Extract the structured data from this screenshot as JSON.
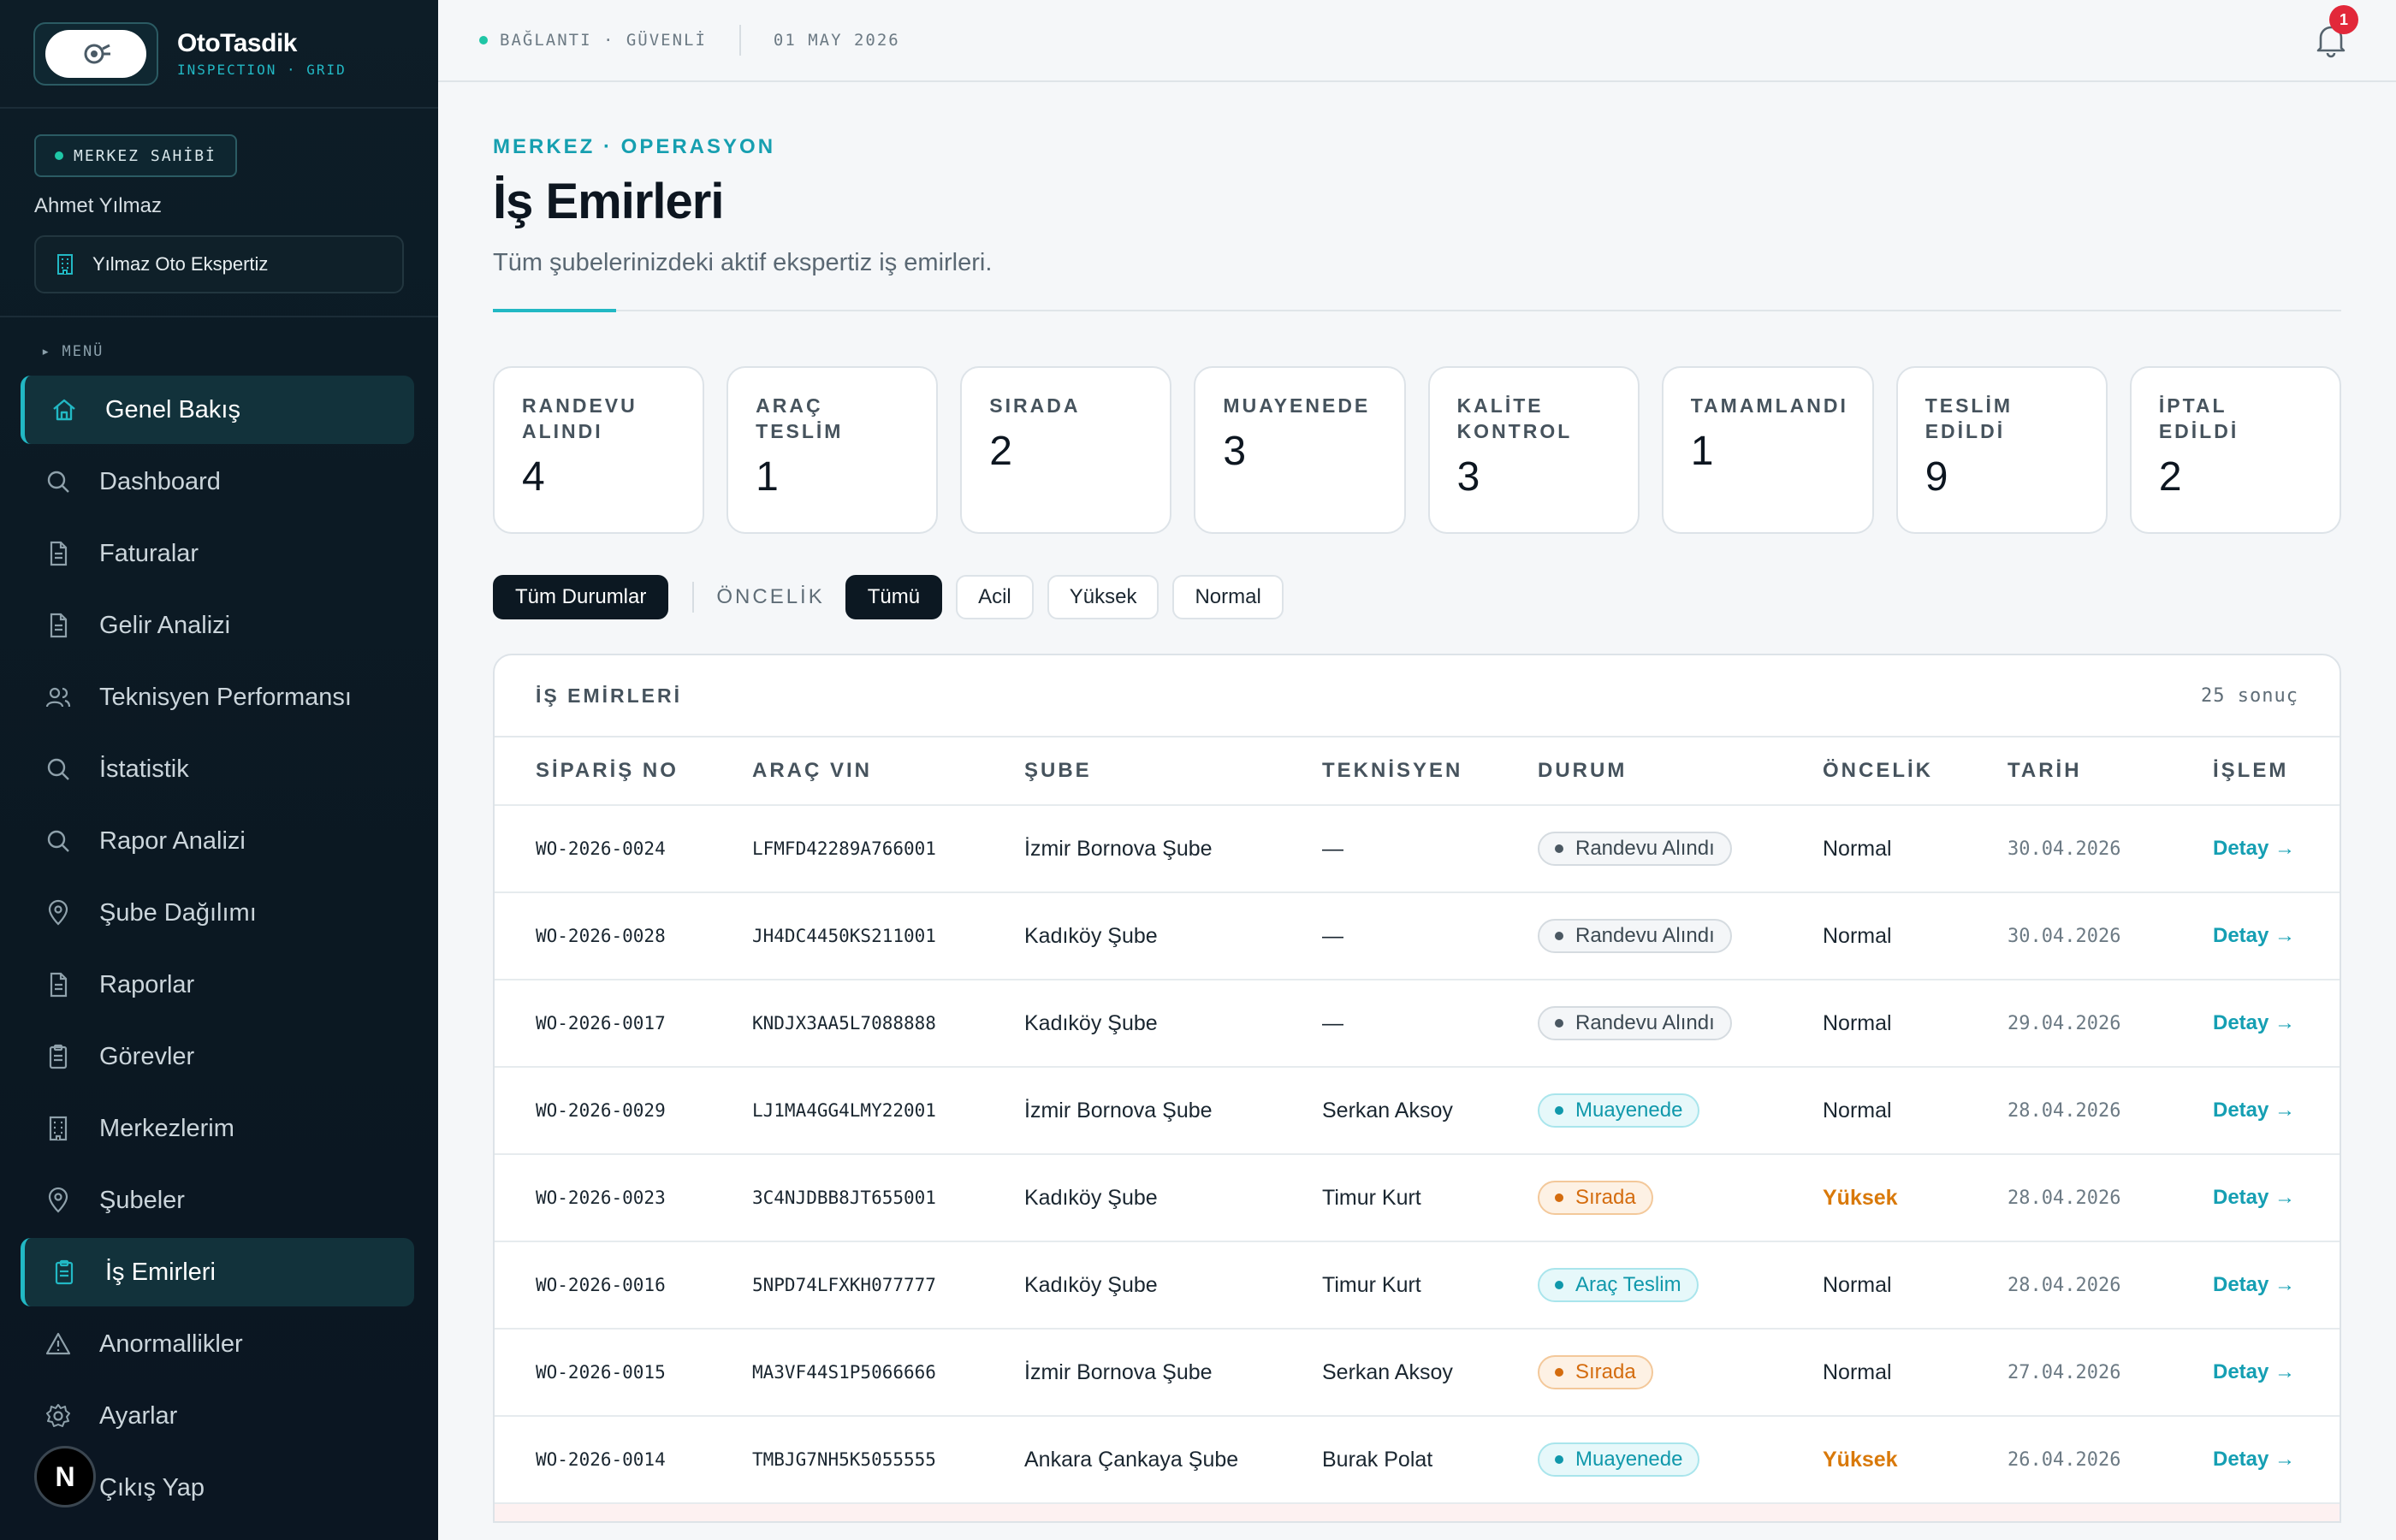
{
  "brand": {
    "name": "OtoTasdik",
    "sub": "INSPECTION · GRID"
  },
  "owner": {
    "badge": "MERKEZ SAHİBİ",
    "name": "Ahmet Yılmaz",
    "company": "Yılmaz Oto Ekspertiz"
  },
  "menu_label": "▸ MENÜ",
  "nav": [
    {
      "label": "Genel Bakış",
      "icon": "home-icon",
      "active": true
    },
    {
      "label": "Dashboard",
      "icon": "search-icon"
    },
    {
      "label": "Faturalar",
      "icon": "document-icon"
    },
    {
      "label": "Gelir Analizi",
      "icon": "document-icon"
    },
    {
      "label": "Teknisyen Performansı",
      "icon": "users-icon"
    },
    {
      "label": "İstatistik",
      "icon": "search-icon"
    },
    {
      "label": "Rapor Analizi",
      "icon": "search-icon"
    },
    {
      "label": "Şube Dağılımı",
      "icon": "map-pin-icon"
    },
    {
      "label": "Raporlar",
      "icon": "document-icon"
    },
    {
      "label": "Görevler",
      "icon": "clipboard-icon"
    },
    {
      "label": "Merkezlerim",
      "icon": "building-icon"
    },
    {
      "label": "Şubeler",
      "icon": "map-pin-icon"
    },
    {
      "label": "İş Emirleri",
      "icon": "clipboard-icon",
      "active": true
    },
    {
      "label": "Anormallikler",
      "icon": "warning-icon"
    },
    {
      "label": "Ayarlar",
      "icon": "gear-icon"
    },
    {
      "label": "Çıkış Yap",
      "icon": "logout-icon"
    }
  ],
  "avatar_letter": "N",
  "topbar": {
    "status": "BAĞLANTI · GÜVENLİ",
    "date": "01 MAY 2026",
    "notifications": "1"
  },
  "page": {
    "crumb": "MERKEZ · OPERASYON",
    "title": "İş Emirleri",
    "subtitle": "Tüm şubelerinizdeki aktif ekspertiz iş emirleri."
  },
  "cards": [
    {
      "label": "RANDEVU ALINDI",
      "value": "4"
    },
    {
      "label": "ARAÇ TESLİM",
      "value": "1"
    },
    {
      "label": "SIRADA",
      "value": "2"
    },
    {
      "label": "MUAYENEDE",
      "value": "3"
    },
    {
      "label": "KALİTE KONTROL",
      "value": "3"
    },
    {
      "label": "TAMAMLANDI",
      "value": "1"
    },
    {
      "label": "TESLİM EDİLDİ",
      "value": "9"
    },
    {
      "label": "İPTAL EDİLDİ",
      "value": "2"
    }
  ],
  "filters": {
    "all_status": "Tüm Durumlar",
    "priority_label": "ÖNCELİK",
    "options": [
      "Tümü",
      "Acil",
      "Yüksek",
      "Normal"
    ]
  },
  "table": {
    "title": "İŞ EMİRLERİ",
    "count": "25 sonuç",
    "columns": [
      "SİPARİŞ NO",
      "ARAÇ VIN",
      "ŞUBE",
      "TEKNİSYEN",
      "DURUM",
      "ÖNCELİK",
      "TARİH",
      "İŞLEM"
    ],
    "rows": [
      {
        "no": "WO-2026-0024",
        "vin": "LFMFD42289A766001",
        "branch": "İzmir Bornova Şube",
        "tech": "—",
        "status": "Randevu Alındı",
        "tone": "gray",
        "priority": "Normal",
        "date": "30.04.2026",
        "action": "Detay →"
      },
      {
        "no": "WO-2026-0028",
        "vin": "JH4DC4450KS211001",
        "branch": "Kadıköy Şube",
        "tech": "—",
        "status": "Randevu Alındı",
        "tone": "gray",
        "priority": "Normal",
        "date": "30.04.2026",
        "action": "Detay →"
      },
      {
        "no": "WO-2026-0017",
        "vin": "KNDJX3AA5L7088888",
        "branch": "Kadıköy Şube",
        "tech": "—",
        "status": "Randevu Alındı",
        "tone": "gray",
        "priority": "Normal",
        "date": "29.04.2026",
        "action": "Detay →"
      },
      {
        "no": "WO-2026-0029",
        "vin": "LJ1MA4GG4LMY22001",
        "branch": "İzmir Bornova Şube",
        "tech": "Serkan Aksoy",
        "status": "Muayenede",
        "tone": "teal",
        "priority": "Normal",
        "date": "28.04.2026",
        "action": "Detay →"
      },
      {
        "no": "WO-2026-0023",
        "vin": "3C4NJDBB8JT655001",
        "branch": "Kadıköy Şube",
        "tech": "Timur Kurt",
        "status": "Sırada",
        "tone": "orange",
        "priority": "Yüksek",
        "date": "28.04.2026",
        "action": "Detay →"
      },
      {
        "no": "WO-2026-0016",
        "vin": "5NPD74LFXKH077777",
        "branch": "Kadıköy Şube",
        "tech": "Timur Kurt",
        "status": "Araç Teslim",
        "tone": "teal",
        "priority": "Normal",
        "date": "28.04.2026",
        "action": "Detay →"
      },
      {
        "no": "WO-2026-0015",
        "vin": "MA3VF44S1P5066666",
        "branch": "İzmir Bornova Şube",
        "tech": "Serkan Aksoy",
        "status": "Sırada",
        "tone": "orange",
        "priority": "Normal",
        "date": "27.04.2026",
        "action": "Detay →"
      },
      {
        "no": "WO-2026-0014",
        "vin": "TMBJG7NH5K5055555",
        "branch": "Ankara Çankaya Şube",
        "tech": "Burak Polat",
        "status": "Muayenede",
        "tone": "teal",
        "priority": "Yüksek",
        "date": "26.04.2026",
        "action": "Detay →"
      }
    ]
  }
}
